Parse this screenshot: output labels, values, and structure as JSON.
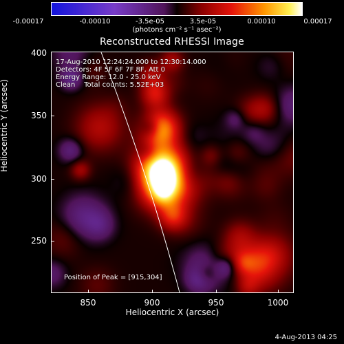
{
  "title": "Reconstructed RHESSI Image",
  "colorbar": {
    "ticks": [
      "-0.00017",
      "-0.00010",
      "-3.5e-05",
      "3.5e-05",
      "0.00010",
      "0.00017"
    ],
    "unit_label": "(photons cm⁻² s⁻¹ asec⁻²)",
    "vmin": -0.00017,
    "vmax": 0.00017
  },
  "annotation": {
    "line1": "17-Aug-2010 12:24:24.000 to 12:30:14.000",
    "line2": "Detectors: 4F 5F 6F 7F 8F, Att 0",
    "line3": "Energy Range: 12.0 - 25.0 keV",
    "line4": "Clean    Total counts: 5.52E+03",
    "peak": "Position of Peak = [915,304]"
  },
  "axes": {
    "xlabel": "Heliocentric X (arcsec)",
    "ylabel": "Heliocentric Y (arcsec)",
    "xticks": [
      "850",
      "900",
      "950",
      "1000"
    ],
    "yticks": [
      "400",
      "350",
      "300",
      "250"
    ],
    "xlim": [
      820,
      1010
    ],
    "ylim": [
      210,
      400
    ]
  },
  "footer": "4-Aug-2013 04:25",
  "colors": {
    "background": "#000000",
    "text": "#ffffff"
  }
}
